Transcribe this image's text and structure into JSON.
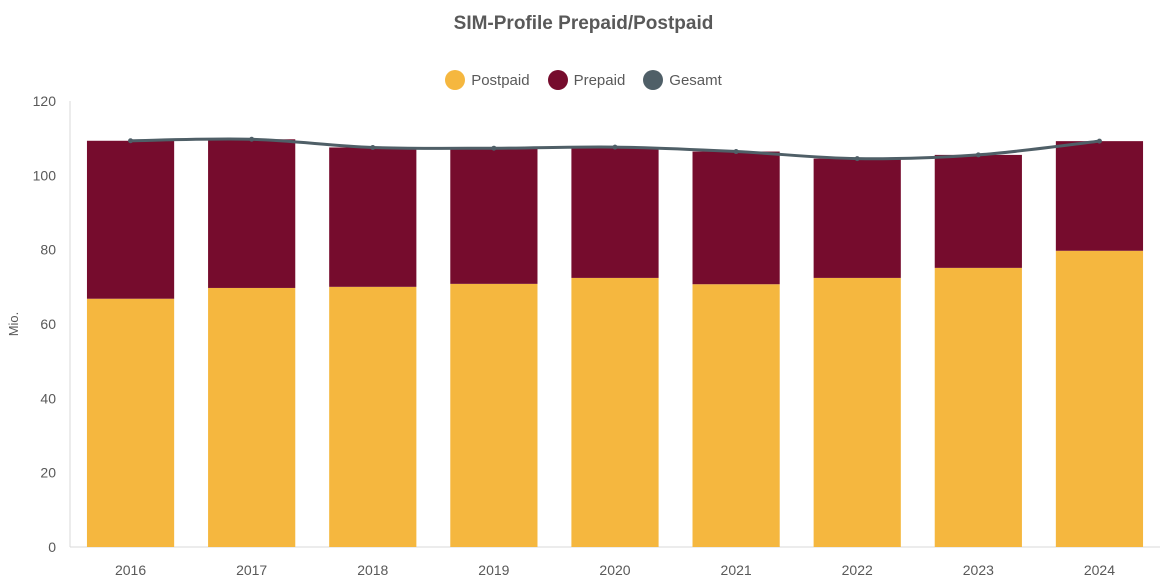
{
  "chart_data": {
    "type": "bar",
    "stacked": true,
    "title": "SIM-Profile Prepaid/Postpaid",
    "ylabel": "Mio.",
    "ylim": [
      0,
      120
    ],
    "yticks": [
      0,
      20,
      40,
      60,
      80,
      100,
      120
    ],
    "categories": [
      "2016",
      "2017",
      "2018",
      "2019",
      "2020",
      "2021",
      "2022",
      "2023",
      "2024"
    ],
    "series": [
      {
        "name": "Postpaid",
        "type": "bar",
        "color": "#F5B73F",
        "values": [
          66.8,
          69.7,
          70.0,
          70.8,
          72.4,
          70.7,
          72.4,
          75.1,
          79.7
        ]
      },
      {
        "name": "Prepaid",
        "type": "bar",
        "color": "#760C2D",
        "values": [
          42.5,
          40.0,
          37.5,
          36.5,
          35.2,
          35.7,
          32.1,
          30.4,
          29.5
        ]
      },
      {
        "name": "Gesamt",
        "type": "line",
        "color": "#4F5F67",
        "values": [
          109.3,
          109.7,
          107.5,
          107.3,
          107.6,
          106.4,
          104.5,
          105.5,
          109.2
        ]
      }
    ],
    "legend_position": "top-center",
    "grid": false
  }
}
